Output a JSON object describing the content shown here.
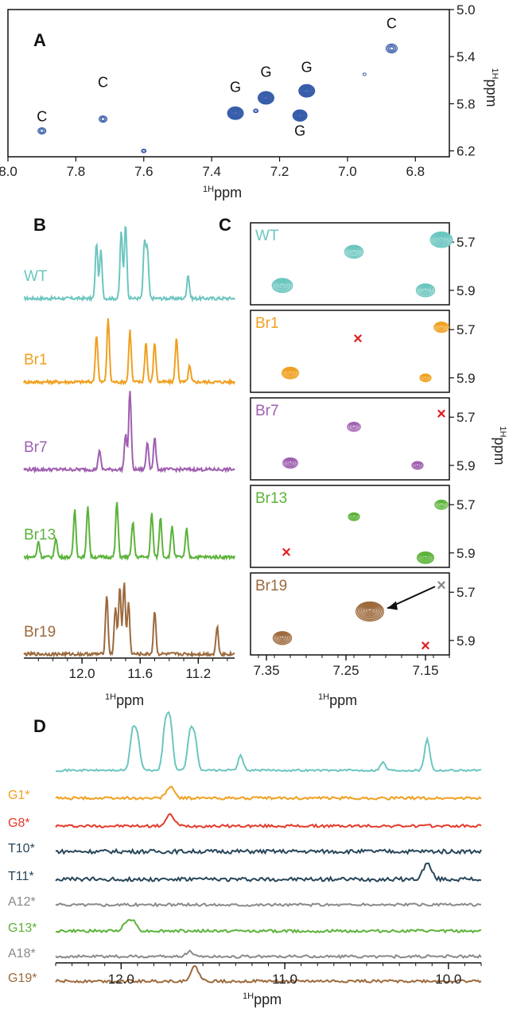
{
  "panels": {
    "A": {
      "label": "A",
      "xlabel": "ppm",
      "ylabel": "ppm",
      "nucleus": "1H",
      "x_ticks": [
        "8.0",
        "7.8",
        "7.6",
        "7.4",
        "7.2",
        "7.0",
        "6.8"
      ],
      "y_ticks": [
        "5.0",
        "5.4",
        "5.8",
        "6.2"
      ],
      "peak_labels": [
        "C",
        "C",
        "G",
        "G",
        "G",
        "G",
        "C"
      ]
    },
    "B": {
      "label": "B",
      "xlabel": "ppm",
      "nucleus": "1H",
      "x_ticks": [
        "12.0",
        "11.6",
        "11.2"
      ],
      "traces": [
        "WT",
        "Br1",
        "Br7",
        "Br13",
        "Br19"
      ]
    },
    "C": {
      "label": "C",
      "xlabel": "ppm",
      "ylabel": "ppm",
      "nucleus": "1H",
      "x_ticks": [
        "7.35",
        "7.25",
        "7.15"
      ],
      "y_ticks": [
        "5.7",
        "5.9"
      ],
      "subpanels": [
        "WT",
        "Br1",
        "Br7",
        "Br13",
        "Br19"
      ],
      "missing_marker": "×"
    },
    "D": {
      "label": "D",
      "xlabel": "ppm",
      "nucleus": "1H",
      "x_ticks": [
        "12.0",
        "11.0",
        "10.0"
      ],
      "traces": [
        "G1*",
        "G8*",
        "T10*",
        "T11*",
        "A12*",
        "G13*",
        "A18*",
        "G19*"
      ]
    }
  },
  "colors": {
    "WT": "#6cc6c0",
    "Br1": "#f0a020",
    "Br7": "#a05fb0",
    "Br13": "#5cb33a",
    "Br19": "#9c6a3d",
    "G8": "#e43c2c",
    "T": "#27465a",
    "A": "#8a8a8a",
    "A_contour": "#2e55a6",
    "marker": "#e02020"
  },
  "chart_data": [
    {
      "type": "scatter",
      "title": "",
      "xlabel": "1H ppm",
      "ylabel": "1H ppm",
      "xlim": [
        8.0,
        6.7
      ],
      "ylim": [
        5.0,
        6.25
      ],
      "series": [
        {
          "x": [
            7.9,
            7.72,
            7.33,
            7.24,
            7.14,
            7.12,
            6.87,
            7.6,
            6.95,
            7.27
          ],
          "y": [
            6.03,
            5.93,
            5.88,
            5.75,
            5.9,
            5.69,
            5.33,
            6.2,
            5.55,
            5.86
          ]
        }
      ]
    },
    {
      "type": "line",
      "title": "",
      "xlabel": "1H ppm",
      "xlim": [
        12.4,
        10.95
      ],
      "series": [
        {
          "name": "WT",
          "peaks": [
            11.9,
            11.87,
            11.73,
            11.7,
            11.57,
            11.55,
            11.27
          ]
        },
        {
          "name": "Br1",
          "peaks": [
            11.9,
            11.82,
            11.67,
            11.56,
            11.5,
            11.35,
            11.26
          ]
        },
        {
          "name": "Br7",
          "peaks": [
            11.88,
            11.7,
            11.67,
            11.55,
            11.5
          ]
        },
        {
          "name": "Br13",
          "peaks": [
            12.3,
            12.18,
            12.05,
            11.96,
            11.76,
            11.65,
            11.52,
            11.46,
            11.38,
            11.28
          ]
        },
        {
          "name": "Br19",
          "peaks": [
            11.83,
            11.77,
            11.74,
            11.71,
            11.68,
            11.5,
            11.07
          ]
        }
      ]
    },
    {
      "type": "scatter",
      "title": "",
      "xlabel": "1H ppm",
      "ylabel": "1H ppm",
      "xlim": [
        7.37,
        7.12
      ],
      "ylim": [
        5.62,
        5.96
      ],
      "series": [
        {
          "name": "WT",
          "x": [
            7.33,
            7.24,
            7.15,
            7.13
          ],
          "y": [
            5.88,
            5.74,
            5.9,
            5.69
          ]
        },
        {
          "name": "Br1",
          "x": [
            7.32,
            7.13,
            7.15
          ],
          "y": [
            5.88,
            5.69,
            5.9
          ]
        },
        {
          "name": "Br7",
          "x": [
            7.32,
            7.24,
            7.16
          ],
          "y": [
            5.89,
            5.74,
            5.9
          ]
        },
        {
          "name": "Br13",
          "x": [
            7.24,
            7.13,
            7.15
          ],
          "y": [
            5.75,
            5.7,
            5.92
          ]
        },
        {
          "name": "Br19",
          "x": [
            7.33,
            7.22
          ],
          "y": [
            5.89,
            5.78
          ]
        }
      ]
    },
    {
      "type": "line",
      "title": "",
      "xlabel": "1H ppm",
      "xlim": [
        12.4,
        9.8
      ],
      "series": [
        {
          "name": "",
          "peaks": [
            11.93,
            11.9,
            11.73,
            11.7,
            11.58,
            11.55,
            11.27,
            10.4,
            10.13
          ]
        },
        {
          "name": "G1*",
          "peaks": [
            11.7
          ]
        },
        {
          "name": "G8*",
          "peaks": [
            11.7
          ]
        },
        {
          "name": "T10*",
          "peaks": []
        },
        {
          "name": "T11*",
          "peaks": [
            10.13
          ]
        },
        {
          "name": "A12*",
          "peaks": []
        },
        {
          "name": "G13*",
          "peaks": [
            11.93,
            11.97
          ]
        },
        {
          "name": "A18*",
          "peaks": [
            11.58
          ]
        },
        {
          "name": "G19*",
          "peaks": [
            11.55
          ]
        }
      ]
    }
  ]
}
